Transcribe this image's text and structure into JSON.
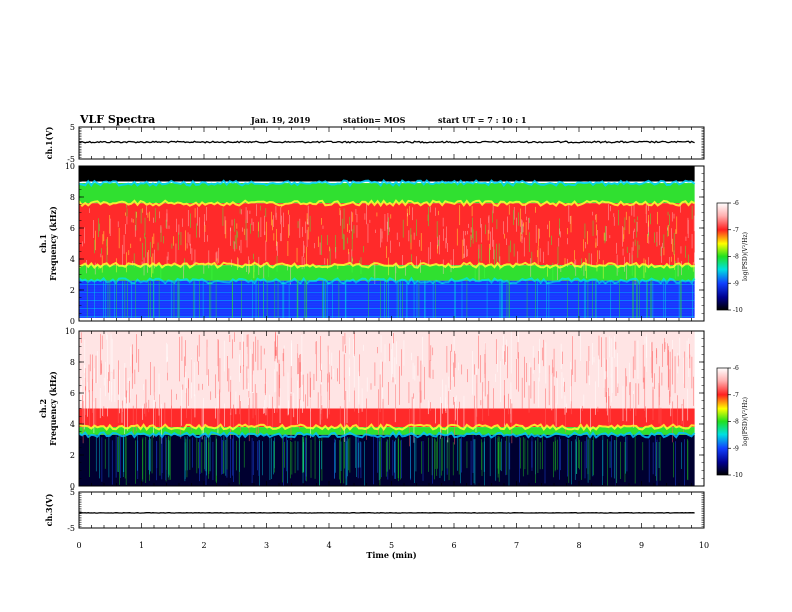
{
  "header": {
    "title": "VLF Spectra",
    "date": "Jan. 19, 2019",
    "station": "station= MOS",
    "start": "start UT =  7 : 10 : 1"
  },
  "chart_data": [
    {
      "type": "line",
      "panel": "ch1-waveform",
      "ylabel": "ch.1(V)",
      "ylim": [
        -5,
        5
      ],
      "yticks": [
        "5",
        "-5"
      ],
      "x": [
        0,
        9.85
      ],
      "series": [
        {
          "values": [
            0.3,
            0.3
          ]
        }
      ]
    },
    {
      "type": "heatmap",
      "panel": "ch1-spectrogram",
      "ylabel": "ch.1\nFrequency (kHz)",
      "ylim": [
        0,
        10
      ],
      "yticks": [
        "0",
        "2",
        "4",
        "6",
        "8",
        "10"
      ],
      "xlim": [
        0,
        9.85
      ],
      "bands_khz": [
        {
          "from": 9.0,
          "to": 10.0,
          "level": "black (no data)"
        },
        {
          "from": 7.6,
          "to": 8.9,
          "level": "-8"
        },
        {
          "from": 3.6,
          "to": 7.6,
          "level": "-7"
        },
        {
          "from": 2.6,
          "to": 3.6,
          "level": "-8"
        },
        {
          "from": 0.2,
          "to": 2.6,
          "level": "-9"
        }
      ],
      "colorbar": {
        "label": "log(PSD)(V²/Hz)",
        "ticks": [
          "-6",
          "-7",
          "-8",
          "-9",
          "-10"
        ]
      }
    },
    {
      "type": "heatmap",
      "panel": "ch2-spectrogram",
      "ylabel": "ch.2\nFrequency (kHz)",
      "ylim": [
        0,
        10
      ],
      "yticks": [
        "0",
        "2",
        "4",
        "6",
        "8",
        "10"
      ],
      "xlim": [
        0,
        9.85
      ],
      "bands_khz": [
        {
          "from": 5.0,
          "to": 10.0,
          "level": "-6"
        },
        {
          "from": 3.8,
          "to": 5.0,
          "level": "-7"
        },
        {
          "from": 3.3,
          "to": 3.8,
          "level": "-8"
        },
        {
          "from": 0.0,
          "to": 3.3,
          "level": "-10"
        }
      ],
      "colorbar": {
        "label": "log(PSD)(V²/Hz)",
        "ticks": [
          "-6",
          "-7",
          "-8",
          "-9",
          "-10"
        ]
      }
    },
    {
      "type": "line",
      "panel": "ch3-waveform",
      "ylabel": "ch.3(V)",
      "ylim": [
        -5,
        5
      ],
      "yticks": [
        "5",
        "-5"
      ],
      "x": [
        0,
        9.85
      ],
      "series": [
        {
          "values": [
            -0.8,
            -0.8
          ]
        }
      ]
    }
  ],
  "xaxis": {
    "label": "Time (min)",
    "ticks": [
      "0",
      "1",
      "2",
      "3",
      "4",
      "5",
      "6",
      "7",
      "8",
      "9",
      "10"
    ],
    "xlim": [
      0,
      10
    ]
  },
  "colors": {
    "black": "#000000",
    "cb_-6": "#ffffff",
    "cb_-7": "#ff2020",
    "cb_-8": "#20e020",
    "cb_-9": "#1040ff",
    "cb_-10": "#000000"
  }
}
